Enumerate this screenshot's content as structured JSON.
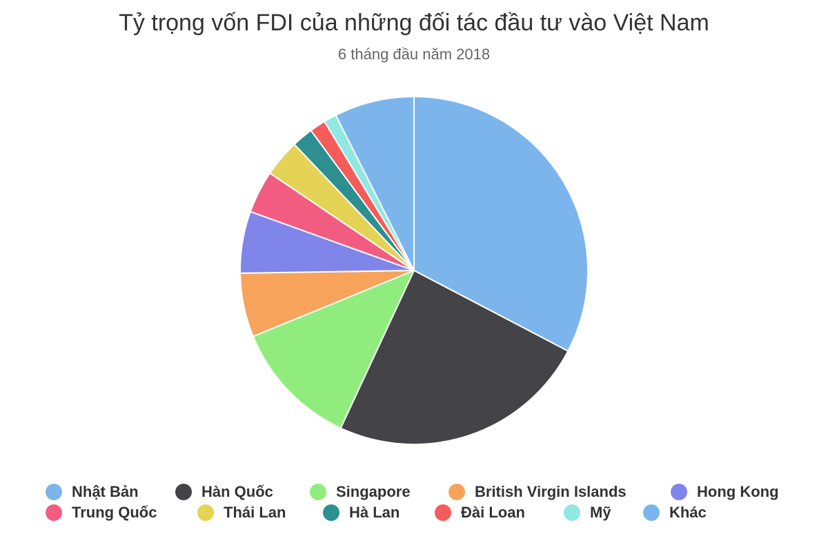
{
  "chart_data": {
    "type": "pie",
    "title": "Tỷ trọng vốn FDI của những đối tác đầu tư vào Việt Nam",
    "subtitle": "6 tháng đầu năm 2018",
    "legend_position": "bottom",
    "slices": [
      {
        "label": "Nhật Bản",
        "value": 33.0,
        "color": "#7cb5ec"
      },
      {
        "label": "Hàn Quốc",
        "value": 24.5,
        "color": "#434348"
      },
      {
        "label": "Singapore",
        "value": 12.0,
        "color": "#90ed7d"
      },
      {
        "label": "British Virgin Islands",
        "value": 6.0,
        "color": "#f7a35c"
      },
      {
        "label": "Hong Kong",
        "value": 5.8,
        "color": "#8085e9"
      },
      {
        "label": "Trung Quốc",
        "value": 4.0,
        "color": "#f15c80"
      },
      {
        "label": "Thái Lan",
        "value": 3.5,
        "color": "#e4d354"
      },
      {
        "label": "Hà Lan",
        "value": 2.0,
        "color": "#2b908f"
      },
      {
        "label": "Đài Loan",
        "value": 1.5,
        "color": "#f45b5b"
      },
      {
        "label": "Mỹ",
        "value": 1.2,
        "color": "#91e8e1"
      },
      {
        "label": "Khác",
        "value": 7.5,
        "color": "#7cb5ec"
      }
    ]
  }
}
